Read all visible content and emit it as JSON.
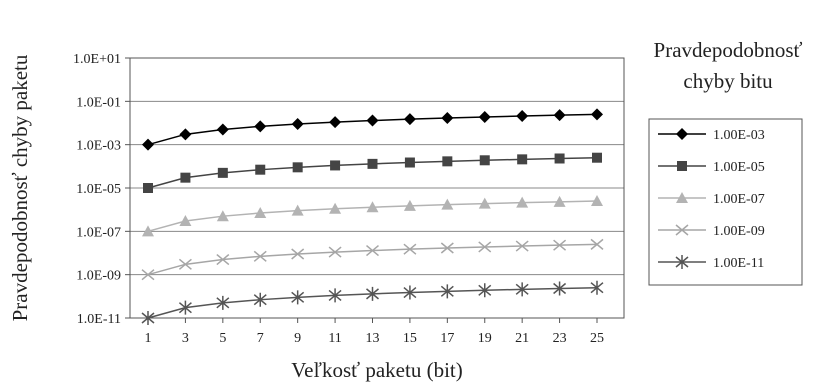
{
  "chart_data": {
    "type": "line",
    "xlabel": "Veľkosť paketu (bit)",
    "ylabel": "Pravdepodobnosť chyby paketu",
    "y_scale": "log",
    "ylim": [
      1e-11,
      10
    ],
    "x_ticks": [
      "1",
      "3",
      "5",
      "7",
      "9",
      "11",
      "13",
      "15",
      "17",
      "19",
      "21",
      "23",
      "25"
    ],
    "y_ticks": [
      "1.0E-11",
      "1.0E-09",
      "1.0E-07",
      "1.0E-05",
      "1.0E-03",
      "1.0E-01",
      "1.0E+01"
    ],
    "grid": "horizontal",
    "legend_title_lines": [
      "Pravdepodobnosť",
      "chyby bitu"
    ],
    "legend_position": "right",
    "x": [
      1,
      3,
      5,
      7,
      9,
      11,
      13,
      15,
      17,
      19,
      21,
      23,
      25
    ],
    "series": [
      {
        "name": "1.00E-03",
        "color": "#000000",
        "marker": "diamond",
        "values": [
          0.001,
          0.003,
          0.005,
          0.007,
          0.009,
          0.011,
          0.013,
          0.015,
          0.017,
          0.019,
          0.021,
          0.023,
          0.025
        ]
      },
      {
        "name": "1.00E-05",
        "color": "#444444",
        "marker": "square",
        "values": [
          1e-05,
          3e-05,
          5e-05,
          7e-05,
          9e-05,
          0.00011,
          0.00013,
          0.00015,
          0.00017,
          0.00019,
          0.00021,
          0.00023,
          0.00025
        ]
      },
      {
        "name": "1.00E-07",
        "color": "#b3b3b3",
        "marker": "triangle",
        "values": [
          1e-07,
          3e-07,
          5e-07,
          7e-07,
          9e-07,
          1.1e-06,
          1.3e-06,
          1.5e-06,
          1.7e-06,
          1.9e-06,
          2.1e-06,
          2.3e-06,
          2.5e-06
        ]
      },
      {
        "name": "1.00E-09",
        "color": "#a6a6a6",
        "marker": "x",
        "values": [
          1e-09,
          3e-09,
          5e-09,
          7e-09,
          9e-09,
          1.1e-08,
          1.3e-08,
          1.5e-08,
          1.7e-08,
          1.9e-08,
          2.1e-08,
          2.3e-08,
          2.5e-08
        ]
      },
      {
        "name": "1.00E-11",
        "color": "#555555",
        "marker": "star",
        "values": [
          1e-11,
          3e-11,
          5e-11,
          7e-11,
          9e-11,
          1.1e-10,
          1.3e-10,
          1.5e-10,
          1.7e-10,
          1.9e-10,
          2.1e-10,
          2.3e-10,
          2.5e-10
        ]
      }
    ]
  }
}
